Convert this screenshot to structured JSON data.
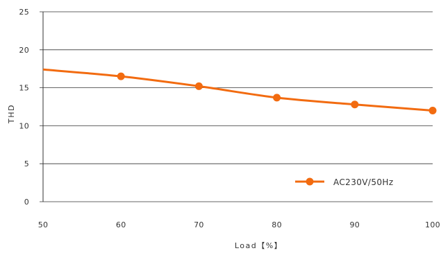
{
  "chart_data": {
    "type": "line",
    "xlabel": "Load【%】",
    "ylabel": "THD",
    "xlim": [
      50,
      100
    ],
    "ylim": [
      0,
      25
    ],
    "x_ticks": [
      "50",
      "60",
      "70",
      "80",
      "90",
      "100"
    ],
    "y_ticks": [
      "0",
      "5",
      "10",
      "15",
      "20",
      "25"
    ],
    "grid": "horizontal",
    "legend_position": "bottom-right",
    "series": [
      {
        "name": "AC230V/50Hz",
        "color": "#f26b10",
        "x": [
          50,
          60,
          70,
          80,
          90,
          100
        ],
        "y": [
          17.4,
          16.5,
          15.2,
          13.7,
          12.8,
          12.0
        ],
        "markers_at": [
          60,
          70,
          80,
          90,
          100
        ]
      }
    ]
  }
}
